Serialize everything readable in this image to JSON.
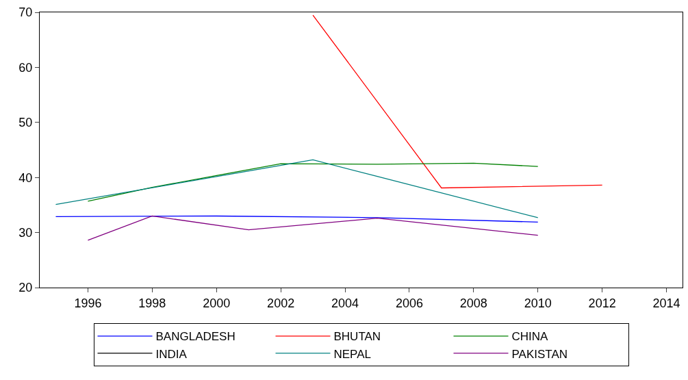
{
  "chart_data": {
    "type": "line",
    "xlim": [
      1994.5,
      2014.5
    ],
    "xticks": [
      1996,
      1998,
      2000,
      2002,
      2004,
      2006,
      2008,
      2010,
      2012,
      2014
    ],
    "ylim": [
      20,
      70
    ],
    "yticks": [
      20,
      30,
      40,
      50,
      60,
      70
    ],
    "legend": "bottom",
    "line_style": "solid",
    "marker": "none",
    "series": [
      {
        "name": "BANGLADESH",
        "color": "#0000ff",
        "x": [
          1995,
          2000,
          2005,
          2010
        ],
        "values": [
          32.9,
          33.0,
          32.7,
          31.9
        ]
      },
      {
        "name": "BHUTAN",
        "color": "#ff0000",
        "x": [
          2003,
          2007,
          2012
        ],
        "values": [
          69.5,
          38.1,
          38.6
        ]
      },
      {
        "name": "CHINA",
        "color": "#008000",
        "x": [
          1996,
          1998,
          2002,
          2005,
          2008,
          2010
        ],
        "values": [
          35.7,
          38.2,
          42.5,
          42.4,
          42.6,
          42.0
        ]
      },
      {
        "name": "INDIA",
        "color": "#000000"
      },
      {
        "name": "NEPAL",
        "color": "#008080",
        "x": [
          1995,
          2003,
          2010
        ],
        "values": [
          35.1,
          43.2,
          32.7
        ]
      },
      {
        "name": "PAKISTAN",
        "color": "#800080",
        "x": [
          1996,
          1998,
          2001,
          2005,
          2010
        ],
        "values": [
          28.6,
          33.0,
          30.5,
          32.6,
          29.5
        ]
      }
    ]
  }
}
